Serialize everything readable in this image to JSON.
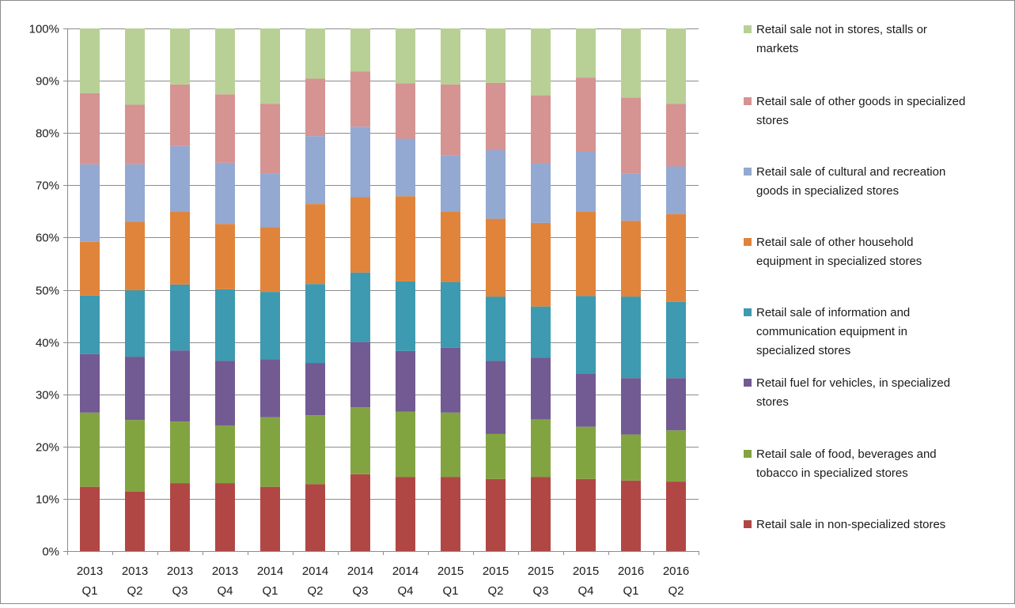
{
  "chart_data": {
    "type": "bar",
    "stacked": true,
    "normalized_percent": true,
    "categories": [
      [
        "2013",
        "Q1"
      ],
      [
        "2013",
        "Q2"
      ],
      [
        "2013",
        "Q3"
      ],
      [
        "2013",
        "Q4"
      ],
      [
        "2014",
        "Q1"
      ],
      [
        "2014",
        "Q2"
      ],
      [
        "2014",
        "Q3"
      ],
      [
        "2014",
        "Q4"
      ],
      [
        "2015",
        "Q1"
      ],
      [
        "2015",
        "Q2"
      ],
      [
        "2015",
        "Q3"
      ],
      [
        "2015",
        "Q4"
      ],
      [
        "2016",
        "Q1"
      ],
      [
        "2016",
        "Q2"
      ]
    ],
    "y_ticks": [
      "0%",
      "10%",
      "20%",
      "30%",
      "40%",
      "50%",
      "60%",
      "70%",
      "80%",
      "90%",
      "100%"
    ],
    "ylim": [
      0,
      100
    ],
    "grid": true,
    "legend_position": "right",
    "series": [
      {
        "name": "Retail sale in non-specialized stores",
        "color": "#b14745",
        "values": [
          12.3,
          11.4,
          13.0,
          13.0,
          12.3,
          12.8,
          14.7,
          14.2,
          14.2,
          13.8,
          14.2,
          13.8,
          13.5,
          13.3
        ]
      },
      {
        "name": "Retail sale of food, beverages and tobacco in specialized stores",
        "color": "#82a440",
        "values": [
          14.2,
          13.7,
          11.8,
          11.0,
          13.3,
          13.2,
          12.8,
          12.5,
          12.3,
          8.6,
          11.0,
          10.0,
          8.8,
          9.8
        ]
      },
      {
        "name": "Retail fuel for vehicles, in specialized stores",
        "color": "#725a93",
        "values": [
          11.2,
          12.1,
          13.6,
          12.4,
          11.1,
          10.0,
          12.5,
          11.6,
          12.4,
          14.0,
          11.8,
          10.2,
          10.8,
          10.0
        ]
      },
      {
        "name": "Retail sale of information and communication equipment in specialized stores",
        "color": "#3d9ab0",
        "values": [
          11.2,
          12.7,
          12.6,
          13.7,
          12.9,
          15.1,
          13.3,
          13.3,
          12.6,
          12.3,
          9.8,
          14.8,
          15.6,
          14.6
        ]
      },
      {
        "name": "Retail sale of other household equipment in specialized stores",
        "color": "#e0843c",
        "values": [
          10.3,
          13.1,
          13.9,
          12.5,
          12.4,
          15.3,
          14.4,
          16.3,
          13.4,
          14.9,
          16.0,
          16.2,
          14.5,
          16.8
        ]
      },
      {
        "name": "Retail sale of cultural and recreation goods in specialized stores",
        "color": "#93a9d1",
        "values": [
          14.8,
          11.0,
          12.6,
          11.7,
          10.3,
          13.0,
          13.5,
          11.0,
          10.8,
          13.1,
          11.4,
          11.4,
          9.0,
          9.1
        ]
      },
      {
        "name": "Retail sale of other goods in specialized stores",
        "color": "#d59392",
        "values": [
          13.6,
          11.4,
          11.8,
          13.1,
          13.3,
          11.0,
          10.6,
          10.6,
          13.6,
          12.9,
          13.0,
          14.2,
          14.6,
          12.0
        ]
      },
      {
        "name": "Retail sale not in stores, stalls or markets",
        "color": "#b8d096",
        "values": [
          12.4,
          14.6,
          10.7,
          12.6,
          14.4,
          9.6,
          8.2,
          10.5,
          10.7,
          10.4,
          12.8,
          9.4,
          13.2,
          14.4
        ]
      }
    ]
  }
}
